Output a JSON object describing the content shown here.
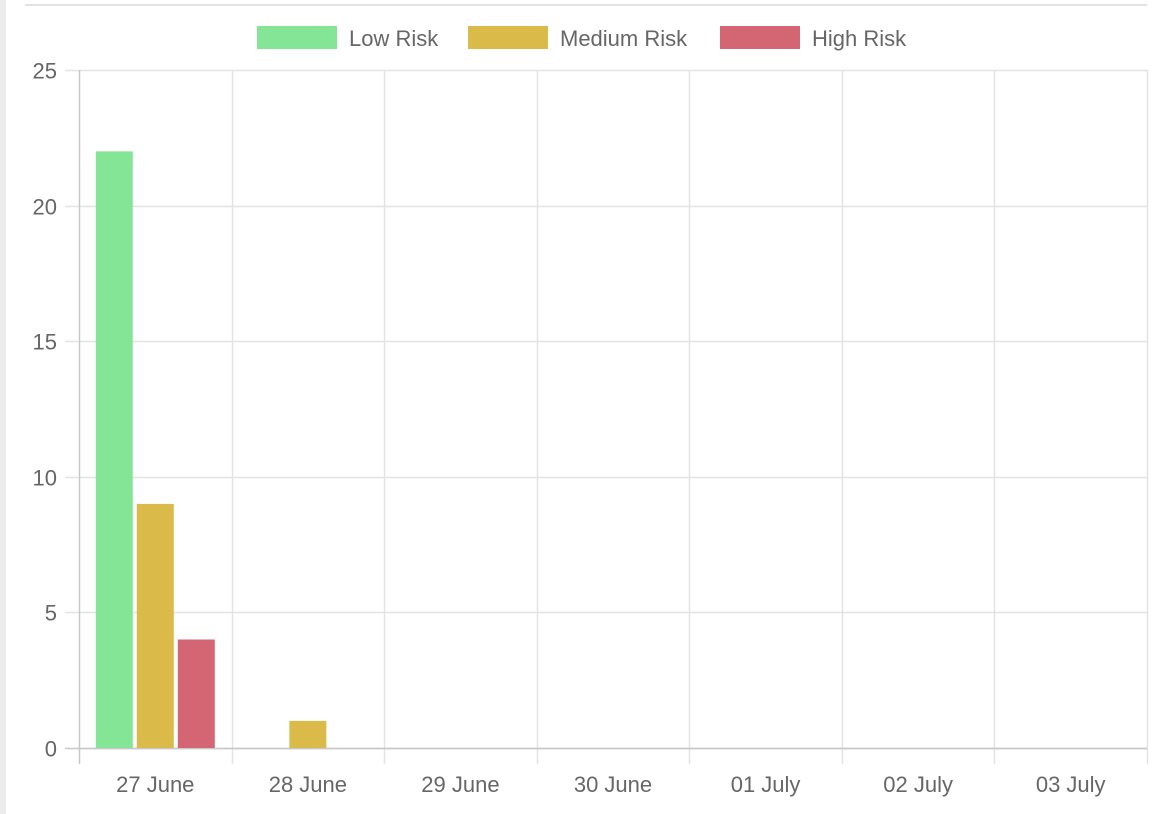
{
  "chart_data": {
    "type": "bar",
    "categories": [
      "27 June",
      "28 June",
      "29 June",
      "30 June",
      "01 July",
      "02 July",
      "03 July"
    ],
    "series": [
      {
        "name": "Low Risk",
        "color": "#84e596",
        "values": [
          22,
          0,
          0,
          0,
          0,
          0,
          0
        ]
      },
      {
        "name": "Medium Risk",
        "color": "#dabb49",
        "values": [
          9,
          1,
          0,
          0,
          0,
          0,
          0
        ]
      },
      {
        "name": "High Risk",
        "color": "#d46572",
        "values": [
          4,
          0,
          0,
          0,
          0,
          0,
          0
        ]
      }
    ],
    "title": "",
    "xlabel": "",
    "ylabel": "",
    "ylim": [
      0,
      25
    ],
    "yticks": [
      0,
      5,
      10,
      15,
      20,
      25
    ],
    "grid": true,
    "legend_position": "top-center"
  }
}
